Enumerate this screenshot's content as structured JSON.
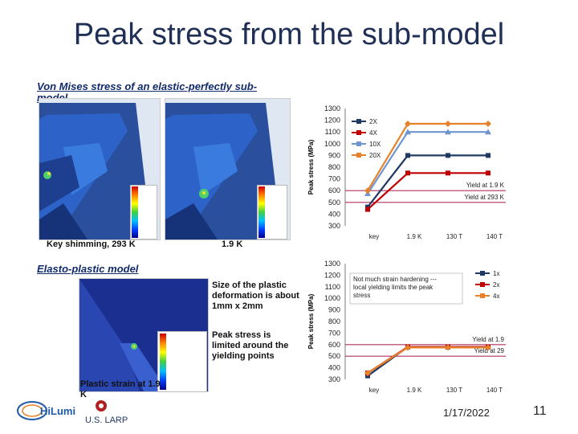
{
  "slide": {
    "title": "Peak stress from the sub-model",
    "date": "1/17/2022",
    "page": "11"
  },
  "left": {
    "caption_top": "Von Mises stress of an elastic-perfectly sub-model",
    "label_293": "Key shimming, 293 K",
    "label_19": "1.9 K",
    "caption_bottom": "Elasto-plastic model",
    "note1": "Size of the plastic deformation is about 1mm x 2mm",
    "note2": "Peak stress is limited around the yielding points",
    "label_strain": "Plastic strain at 1.9 K"
  },
  "logos": {
    "hilumi": "HiLumi",
    "usl": "U.S. LARP"
  },
  "chart_data": [
    {
      "type": "line",
      "title": "",
      "ylabel": "Peak stress (MPa)",
      "xlabel": "",
      "categories": [
        "key",
        "1.9 K",
        "130 T",
        "140 T"
      ],
      "ylim": [
        300,
        1300
      ],
      "yticks": [
        300,
        400,
        500,
        600,
        700,
        800,
        900,
        1000,
        1100,
        1200,
        1300
      ],
      "series": [
        {
          "name": "2X",
          "color": "#1f3864",
          "marker": "square",
          "values": [
            460,
            900,
            900,
            900
          ]
        },
        {
          "name": "4X",
          "color": "#c00000",
          "marker": "square",
          "values": [
            440,
            750,
            750,
            750
          ]
        },
        {
          "name": "10X",
          "color": "#6f95cf",
          "marker": "triangle",
          "values": [
            575,
            1100,
            1100,
            1100
          ]
        },
        {
          "name": "20X",
          "color": "#e8822a",
          "marker": "diamond",
          "values": [
            600,
            1170,
            1170,
            1170
          ]
        }
      ],
      "reference_lines": [
        {
          "label": "Yield at 1.9 K",
          "value": 600,
          "color": "#b03060"
        },
        {
          "label": "Yield at 293 K",
          "value": 500,
          "color": "#b03060"
        }
      ],
      "legend": "top-left",
      "grid": false
    },
    {
      "type": "line",
      "title": "",
      "ylabel": "Peak stress (MPa)",
      "xlabel": "",
      "categories": [
        "key",
        "1.9 K",
        "130 T",
        "140 T"
      ],
      "ylim": [
        300,
        1300
      ],
      "yticks": [
        300,
        400,
        500,
        600,
        700,
        800,
        900,
        1000,
        1100,
        1200,
        1300
      ],
      "series": [
        {
          "name": "1x",
          "color": "#1f3864",
          "marker": "square",
          "values": [
            330,
            580,
            580,
            580
          ]
        },
        {
          "name": "2x",
          "color": "#c00000",
          "marker": "square",
          "values": [
            355,
            580,
            580,
            580
          ]
        },
        {
          "name": "4x",
          "color": "#e8822a",
          "marker": "diamond",
          "values": [
            355,
            575,
            575,
            575
          ]
        }
      ],
      "reference_lines": [
        {
          "label": "Yield at 1.9",
          "value": 600,
          "color": "#b03060"
        },
        {
          "label": "Yield at 29",
          "value": 500,
          "color": "#b03060"
        }
      ],
      "annotation": "Not much strain hardening --- local yielding limits the peak stress",
      "legend": "right",
      "grid": false
    }
  ]
}
